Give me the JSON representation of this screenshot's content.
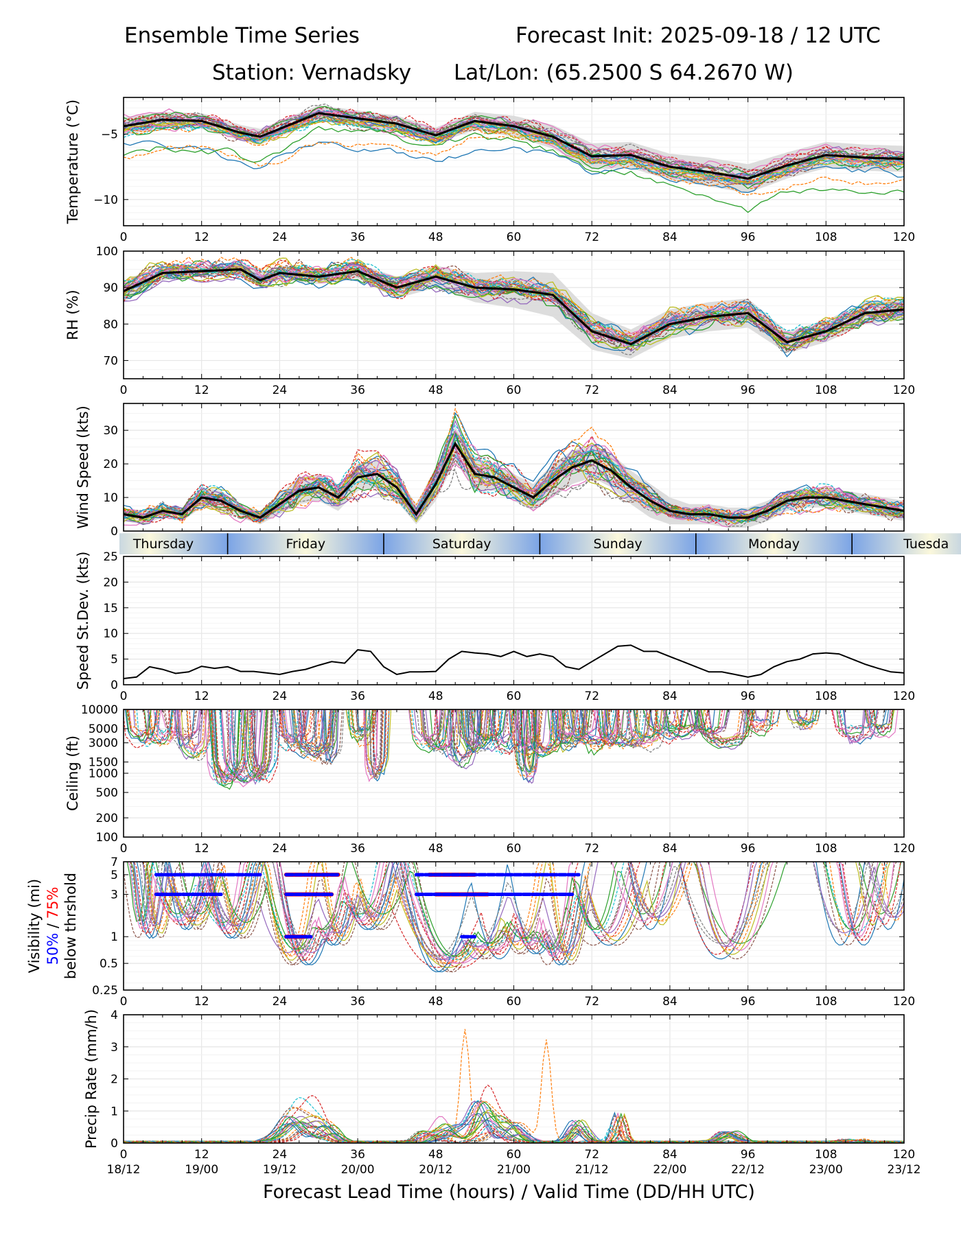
{
  "header": {
    "title_left": "Ensemble Time Series",
    "title_right": "Forecast Init: 2025-09-18 / 12 UTC",
    "station": "Station: Vernadsky",
    "latlon": "Lat/Lon: (65.2500 S 64.2670 W)"
  },
  "xaxis": {
    "label": "Forecast Lead Time (hours) / Valid Time (DD/HH UTC)",
    "ticks": [
      0,
      12,
      24,
      36,
      48,
      60,
      72,
      84,
      96,
      108,
      120
    ],
    "valid_times": [
      "18/12",
      "19/00",
      "19/12",
      "20/00",
      "20/12",
      "21/00",
      "21/12",
      "22/00",
      "22/12",
      "23/00",
      "23/12"
    ]
  },
  "day_band": {
    "days": [
      "Thursday",
      "Friday",
      "Saturday",
      "Sunday",
      "Monday",
      "Tuesda"
    ],
    "boundaries_hours": [
      16,
      40,
      64,
      88,
      112
    ]
  },
  "colors": {
    "mean": "#000000",
    "spread": "#d9d9d9",
    "pct50": "#0000ff",
    "pct75": "#ff0000",
    "grid": "#e6e6e6",
    "band_dark": "#7ba4e6",
    "band_light": "#fbf8dc",
    "members": [
      "#1f77b4",
      "#ff7f0e",
      "#2ca02c",
      "#d62728",
      "#9467bd",
      "#8c564b",
      "#e377c2",
      "#7f7f7f",
      "#bcbd22",
      "#17becf"
    ]
  },
  "chart_data": [
    {
      "type": "line",
      "id": "temperature",
      "ylabel": "Temperature (°C)",
      "yscale": "linear",
      "ylim": [
        -12,
        -2.2
      ],
      "yticks": [
        -10,
        -5
      ],
      "ytick_labels": [
        "−10",
        "−5"
      ],
      "x": [
        0,
        6,
        12,
        18,
        21,
        24,
        30,
        36,
        42,
        48,
        54,
        60,
        66,
        72,
        78,
        84,
        90,
        96,
        102,
        108,
        114,
        120
      ],
      "mean": [
        -4.4,
        -3.9,
        -4.0,
        -4.9,
        -5.2,
        -4.6,
        -3.4,
        -3.8,
        -4.2,
        -5.1,
        -4.0,
        -4.4,
        -5.2,
        -6.7,
        -6.6,
        -7.5,
        -7.9,
        -8.4,
        -7.4,
        -6.6,
        -6.8,
        -6.9
      ],
      "spread": [
        0.7,
        0.6,
        0.6,
        0.6,
        0.6,
        0.6,
        0.6,
        0.6,
        0.6,
        0.6,
        0.7,
        0.8,
        0.9,
        1.0,
        1.0,
        1.0,
        1.1,
        1.1,
        1.0,
        1.0,
        1.0,
        1.0
      ],
      "members": {
        "count": 30,
        "noise": 0.35,
        "offset": 0.5,
        "outliers": 3,
        "outlier_shift": -2.6
      }
    },
    {
      "type": "line",
      "id": "rh",
      "ylabel": "RH (%)",
      "yscale": "linear",
      "ylim": [
        65,
        100
      ],
      "yticks": [
        70,
        80,
        90,
        100
      ],
      "ytick_labels": [
        "70",
        "80",
        "90",
        "100"
      ],
      "x": [
        0,
        6,
        12,
        18,
        21,
        24,
        30,
        36,
        42,
        48,
        54,
        60,
        66,
        72,
        78,
        84,
        90,
        96,
        102,
        108,
        114,
        120
      ],
      "mean": [
        89,
        94,
        94.5,
        95,
        92,
        94,
        93,
        94.5,
        90,
        93,
        90,
        89.5,
        88,
        78,
        74.5,
        80,
        82,
        83,
        75,
        78,
        83,
        84
      ],
      "spread": [
        3,
        2,
        1.5,
        1.5,
        2,
        2,
        2,
        2,
        3,
        3,
        4,
        5,
        6,
        5,
        4,
        4,
        4,
        4,
        3,
        3,
        3,
        3
      ],
      "members": {
        "count": 30,
        "noise": 2.0,
        "offset": 2.0,
        "outliers": 0,
        "outlier_shift": 0
      }
    },
    {
      "type": "line",
      "id": "wind",
      "ylabel": "Wind Speed (kts)",
      "yscale": "linear",
      "ylim": [
        0,
        38
      ],
      "yticks": [
        0,
        10,
        20,
        30
      ],
      "ytick_labels": [
        "0",
        "10",
        "20",
        "30"
      ],
      "x": [
        0,
        3,
        6,
        9,
        12,
        15,
        18,
        21,
        24,
        27,
        30,
        33,
        36,
        39,
        42,
        45,
        48,
        51,
        54,
        57,
        60,
        63,
        66,
        69,
        72,
        75,
        78,
        81,
        84,
        87,
        90,
        93,
        96,
        99,
        102,
        105,
        108,
        111,
        114,
        117,
        120
      ],
      "mean": [
        5,
        4,
        6,
        5,
        10,
        9,
        6,
        4,
        8,
        12,
        13,
        10,
        16,
        17,
        13,
        5,
        14,
        26,
        17,
        16,
        13,
        10,
        15,
        19,
        21,
        18,
        13,
        9,
        6,
        5,
        5,
        4,
        4,
        6,
        9,
        10,
        10,
        9,
        8,
        7,
        6
      ],
      "spread": [
        2,
        2,
        2,
        2,
        3,
        3,
        2,
        2,
        3,
        4,
        4,
        4,
        4,
        4,
        4,
        3,
        5,
        5,
        5,
        4,
        4,
        4,
        5,
        5,
        5,
        5,
        5,
        5,
        4,
        3,
        3,
        3,
        3,
        3,
        3,
        3,
        3,
        3,
        3,
        3,
        3
      ],
      "members": {
        "count": 30,
        "noise": 2.2,
        "offset": 2.0,
        "outliers": 0,
        "outlier_shift": 0
      }
    },
    {
      "type": "line",
      "id": "speed_sd",
      "ylabel": "Speed St.Dev. (kts)",
      "yscale": "linear",
      "ylim": [
        0,
        25
      ],
      "yticks": [
        0,
        5,
        10,
        15,
        20,
        25
      ],
      "ytick_labels": [
        "0",
        "5",
        "10",
        "15",
        "20",
        "25"
      ],
      "x": [
        0,
        2,
        4,
        6,
        8,
        10,
        12,
        14,
        16,
        18,
        20,
        22,
        24,
        26,
        28,
        30,
        32,
        34,
        36,
        38,
        40,
        42,
        44,
        46,
        48,
        50,
        52,
        54,
        56,
        58,
        60,
        62,
        64,
        66,
        68,
        70,
        72,
        74,
        76,
        78,
        80,
        82,
        84,
        86,
        88,
        90,
        92,
        94,
        96,
        98,
        100,
        102,
        104,
        106,
        108,
        110,
        112,
        114,
        116,
        118,
        120
      ],
      "values": [
        1.2,
        1.5,
        3.5,
        3.0,
        2.2,
        2.5,
        3.6,
        3.2,
        3.5,
        2.6,
        2.6,
        2.3,
        2.0,
        2.6,
        3.0,
        3.8,
        4.5,
        4.2,
        6.8,
        6.5,
        3.5,
        2.0,
        2.5,
        2.5,
        2.6,
        5.0,
        6.5,
        6.2,
        6.0,
        5.5,
        6.5,
        5.5,
        6.0,
        5.5,
        3.5,
        3.0,
        4.5,
        6.0,
        7.5,
        7.7,
        6.5,
        6.5,
        5.5,
        4.5,
        3.5,
        2.5,
        2.5,
        2.0,
        1.5,
        2.0,
        3.5,
        4.5,
        5.0,
        6.0,
        6.2,
        6.0,
        5.0,
        4.0,
        3.2,
        2.5,
        2.3
      ]
    },
    {
      "type": "line",
      "id": "ceiling",
      "ylabel": "Ceiling (ft)",
      "yscale": "log",
      "ylim": [
        100,
        10000
      ],
      "yticks": [
        100,
        200,
        500,
        1000,
        1500,
        3000,
        5000,
        10000
      ],
      "ytick_labels": [
        "100",
        "200",
        "500",
        "1000",
        "1500",
        "3000",
        "5000",
        "10000"
      ],
      "episodes": [
        [
          1,
          5,
          3300
        ],
        [
          4,
          8,
          3400
        ],
        [
          7,
          11,
          3500
        ],
        [
          9,
          13,
          2000
        ],
        [
          13,
          17,
          700
        ],
        [
          14,
          19,
          750
        ],
        [
          16,
          21,
          800
        ],
        [
          19,
          23,
          900
        ],
        [
          24,
          28,
          3000
        ],
        [
          25,
          30,
          2500
        ],
        [
          27,
          32,
          2000
        ],
        [
          30,
          33,
          1800
        ],
        [
          35,
          38,
          3500
        ],
        [
          38,
          40,
          1000
        ],
        [
          45,
          49,
          3000
        ],
        [
          47,
          51,
          2000
        ],
        [
          50,
          54,
          1500
        ],
        [
          52,
          56,
          2500
        ],
        [
          54,
          58,
          3000
        ],
        [
          57,
          61,
          2800
        ],
        [
          60,
          64,
          2500
        ],
        [
          61,
          63,
          900
        ],
        [
          63,
          67,
          2200
        ],
        [
          66,
          70,
          3000
        ],
        [
          68,
          72,
          3500
        ],
        [
          70,
          75,
          2600
        ],
        [
          73,
          77,
          3200
        ],
        [
          75,
          80,
          2700
        ],
        [
          78,
          83,
          3000
        ],
        [
          81,
          86,
          4000
        ],
        [
          84,
          89,
          4200
        ],
        [
          87,
          92,
          3800
        ],
        [
          89,
          96,
          2600
        ],
        [
          96,
          100,
          5000
        ],
        [
          103,
          106,
          6000
        ],
        [
          110,
          115,
          3800
        ],
        [
          115,
          118,
          4500
        ]
      ],
      "members": {
        "count": 18
      }
    },
    {
      "type": "line",
      "id": "visibility",
      "ylabel": "Visibility (mi)",
      "ylabel_extra": [
        "50%",
        " / ",
        "75%"
      ],
      "ylabel_sub": "below thrshold",
      "yscale": "log",
      "ylim": [
        0.25,
        7
      ],
      "yticks": [
        0.25,
        0.5,
        1,
        3,
        5,
        7
      ],
      "ytick_labels": [
        "0.25",
        "0.5",
        "1",
        "3",
        "5",
        "7"
      ],
      "dips": [
        [
          4,
          2,
          1.2
        ],
        [
          10,
          4,
          1.5
        ],
        [
          17,
          4,
          1.2
        ],
        [
          27,
          5,
          0.6
        ],
        [
          32,
          4,
          1.0
        ],
        [
          38,
          4,
          1.5
        ],
        [
          50,
          8,
          0.5
        ],
        [
          56,
          6,
          0.7
        ],
        [
          62,
          5,
          0.8
        ],
        [
          67,
          4,
          0.6
        ],
        [
          74,
          5,
          1.0
        ],
        [
          81,
          4,
          1.5
        ],
        [
          93,
          6,
          0.7
        ],
        [
          112,
          4,
          1.0
        ],
        [
          117,
          3,
          1.5
        ]
      ],
      "members": {
        "count": 18
      },
      "threshold_segments": {
        "pct50": [
          [
            5,
            21,
            5
          ],
          [
            5,
            15,
            3
          ],
          [
            25,
            33,
            5
          ],
          [
            25,
            32,
            3
          ],
          [
            25,
            29,
            1
          ],
          [
            45,
            70,
            5
          ],
          [
            45,
            69,
            3
          ],
          [
            52,
            54,
            1
          ]
        ],
        "pct75": [
          [
            25,
            33,
            5
          ],
          [
            25,
            32,
            3
          ],
          [
            25,
            28,
            1
          ],
          [
            47,
            54,
            5
          ],
          [
            48,
            56,
            3
          ]
        ]
      }
    },
    {
      "type": "line",
      "id": "precip",
      "ylabel": "Precip Rate (mm/h)",
      "yscale": "linear",
      "ylim": [
        0,
        4
      ],
      "yticks": [
        0,
        1,
        2,
        3,
        4
      ],
      "ytick_labels": [
        "0",
        "1",
        "2",
        "3",
        "4"
      ],
      "peaks": [
        [
          26,
          2.5,
          0.9
        ],
        [
          28,
          2.5,
          0.8
        ],
        [
          31,
          2,
          0.6
        ],
        [
          47,
          2,
          0.4
        ],
        [
          50,
          2,
          0.6
        ],
        [
          53,
          1,
          3.5
        ],
        [
          55,
          2,
          1.4
        ],
        [
          57,
          2,
          0.8
        ],
        [
          60,
          2,
          0.6
        ],
        [
          66,
          1,
          3.2
        ],
        [
          70,
          1.5,
          0.8
        ],
        [
          76,
          0.8,
          0.9
        ],
        [
          93,
          2,
          0.4
        ],
        [
          112,
          2,
          0.1
        ]
      ],
      "members": {
        "count": 24
      }
    }
  ]
}
